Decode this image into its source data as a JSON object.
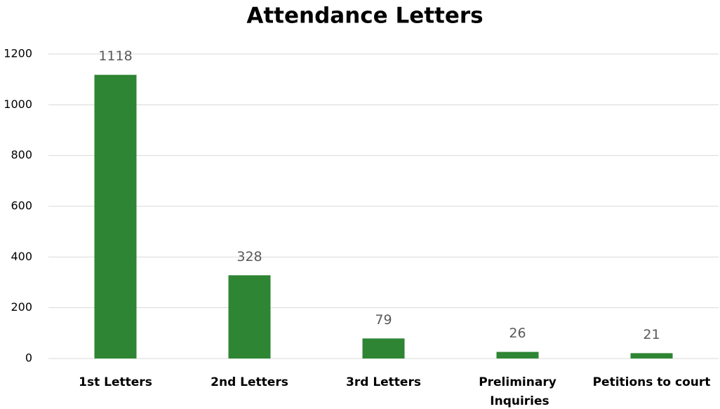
{
  "chart_data": {
    "type": "bar",
    "title": "Attendance Letters",
    "categories": [
      "1st Letters",
      "2nd Letters",
      "3rd Letters",
      "Preliminary Inquiries",
      "Petitions to court"
    ],
    "values": [
      1118,
      328,
      79,
      26,
      21
    ],
    "color": "#2e8533",
    "ylim": [
      0,
      1200
    ],
    "yticks": [
      0,
      200,
      400,
      600,
      800,
      1000,
      1200
    ],
    "grid": true
  }
}
